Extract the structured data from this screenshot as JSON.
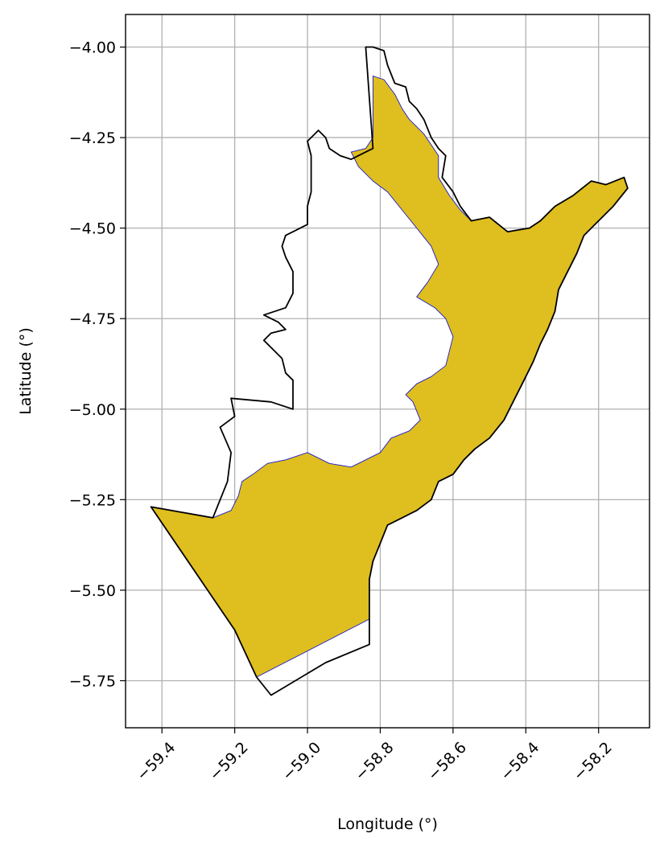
{
  "chart_data": {
    "type": "map",
    "xlabel": "Longitude (°)",
    "ylabel": "Latitude (°)",
    "xlim": [
      -59.5,
      -58.06
    ],
    "ylim": [
      -5.88,
      -3.91
    ],
    "x_ticks": [
      -59.4,
      -59.2,
      -59.0,
      -58.8,
      -58.6,
      -58.4,
      -58.2
    ],
    "x_tick_labels": [
      "−59.4",
      "−59.2",
      "−59.0",
      "−58.8",
      "−58.6",
      "−58.4",
      "−58.2"
    ],
    "y_ticks": [
      -4.0,
      -4.25,
      -4.5,
      -4.75,
      -5.0,
      -5.25,
      -5.5,
      -5.75
    ],
    "y_tick_labels": [
      "−4.00",
      "−4.25",
      "−4.50",
      "−4.75",
      "−5.00",
      "−5.25",
      "−5.50",
      "−5.75"
    ],
    "grid": true,
    "colors": {
      "filled_region": "#dfbe1f",
      "filled_edge": "#1a1acc",
      "boundary": "#000000",
      "grid": "#b0b0b0"
    },
    "layers": [
      {
        "name": "boundary",
        "style": "outline",
        "coords": [
          [
            -58.82,
            -4.0
          ],
          [
            -58.79,
            -4.01
          ],
          [
            -58.78,
            -4.05
          ],
          [
            -58.76,
            -4.1
          ],
          [
            -58.73,
            -4.11
          ],
          [
            -58.72,
            -4.15
          ],
          [
            -58.7,
            -4.17
          ],
          [
            -58.68,
            -4.2
          ],
          [
            -58.66,
            -4.25
          ],
          [
            -58.64,
            -4.28
          ],
          [
            -58.62,
            -4.3
          ],
          [
            -58.63,
            -4.36
          ],
          [
            -58.6,
            -4.4
          ],
          [
            -58.58,
            -4.44
          ],
          [
            -58.55,
            -4.48
          ],
          [
            -58.5,
            -4.47
          ],
          [
            -58.45,
            -4.51
          ],
          [
            -58.39,
            -4.5
          ],
          [
            -58.36,
            -4.48
          ],
          [
            -58.32,
            -4.44
          ],
          [
            -58.27,
            -4.41
          ],
          [
            -58.22,
            -4.37
          ],
          [
            -58.18,
            -4.38
          ],
          [
            -58.13,
            -4.36
          ],
          [
            -58.12,
            -4.39
          ],
          [
            -58.16,
            -4.44
          ],
          [
            -58.2,
            -4.48
          ],
          [
            -58.24,
            -4.52
          ],
          [
            -58.26,
            -4.57
          ],
          [
            -58.29,
            -4.63
          ],
          [
            -58.31,
            -4.67
          ],
          [
            -58.32,
            -4.73
          ],
          [
            -58.34,
            -4.78
          ],
          [
            -58.36,
            -4.82
          ],
          [
            -58.38,
            -4.87
          ],
          [
            -58.41,
            -4.93
          ],
          [
            -58.44,
            -4.99
          ],
          [
            -58.46,
            -5.03
          ],
          [
            -58.5,
            -5.08
          ],
          [
            -58.54,
            -5.11
          ],
          [
            -58.57,
            -5.14
          ],
          [
            -58.6,
            -5.18
          ],
          [
            -58.64,
            -5.2
          ],
          [
            -58.66,
            -5.25
          ],
          [
            -58.7,
            -5.28
          ],
          [
            -58.74,
            -5.3
          ],
          [
            -58.78,
            -5.32
          ],
          [
            -58.8,
            -5.37
          ],
          [
            -58.82,
            -5.42
          ],
          [
            -58.83,
            -5.47
          ],
          [
            -58.83,
            -5.56
          ],
          [
            -58.83,
            -5.65
          ],
          [
            -58.95,
            -5.7
          ],
          [
            -59.1,
            -5.79
          ],
          [
            -59.14,
            -5.74
          ],
          [
            -59.2,
            -5.61
          ],
          [
            -59.43,
            -5.27
          ],
          [
            -59.26,
            -5.3
          ],
          [
            -59.22,
            -5.2
          ],
          [
            -59.21,
            -5.12
          ],
          [
            -59.24,
            -5.05
          ],
          [
            -59.2,
            -5.02
          ],
          [
            -59.21,
            -4.97
          ],
          [
            -59.1,
            -4.98
          ],
          [
            -59.04,
            -5.0
          ],
          [
            -59.04,
            -4.92
          ],
          [
            -59.06,
            -4.9
          ],
          [
            -59.07,
            -4.86
          ],
          [
            -59.09,
            -4.84
          ],
          [
            -59.12,
            -4.81
          ],
          [
            -59.1,
            -4.79
          ],
          [
            -59.06,
            -4.78
          ],
          [
            -59.08,
            -4.76
          ],
          [
            -59.12,
            -4.74
          ],
          [
            -59.09,
            -4.73
          ],
          [
            -59.06,
            -4.72
          ],
          [
            -59.04,
            -4.68
          ],
          [
            -59.04,
            -4.62
          ],
          [
            -59.06,
            -4.58
          ],
          [
            -59.07,
            -4.55
          ],
          [
            -59.06,
            -4.52
          ],
          [
            -59.04,
            -4.51
          ],
          [
            -59.0,
            -4.49
          ],
          [
            -59.0,
            -4.44
          ],
          [
            -58.99,
            -4.4
          ],
          [
            -58.99,
            -4.3
          ],
          [
            -59.0,
            -4.26
          ],
          [
            -58.97,
            -4.23
          ],
          [
            -58.95,
            -4.25
          ],
          [
            -58.94,
            -4.28
          ],
          [
            -58.91,
            -4.3
          ],
          [
            -58.88,
            -4.31
          ],
          [
            -58.82,
            -4.28
          ],
          [
            -58.84,
            -4.0
          ]
        ]
      },
      {
        "name": "filled-region",
        "style": "fill",
        "coords": [
          [
            -58.82,
            -4.08
          ],
          [
            -58.79,
            -4.09
          ],
          [
            -58.76,
            -4.13
          ],
          [
            -58.74,
            -4.17
          ],
          [
            -58.72,
            -4.2
          ],
          [
            -58.7,
            -4.22
          ],
          [
            -58.68,
            -4.24
          ],
          [
            -58.66,
            -4.27
          ],
          [
            -58.64,
            -4.3
          ],
          [
            -58.64,
            -4.36
          ],
          [
            -58.61,
            -4.41
          ],
          [
            -58.58,
            -4.45
          ],
          [
            -58.55,
            -4.48
          ],
          [
            -58.5,
            -4.47
          ],
          [
            -58.45,
            -4.51
          ],
          [
            -58.39,
            -4.5
          ],
          [
            -58.36,
            -4.48
          ],
          [
            -58.32,
            -4.44
          ],
          [
            -58.27,
            -4.41
          ],
          [
            -58.22,
            -4.37
          ],
          [
            -58.18,
            -4.38
          ],
          [
            -58.13,
            -4.36
          ],
          [
            -58.12,
            -4.39
          ],
          [
            -58.16,
            -4.44
          ],
          [
            -58.2,
            -4.48
          ],
          [
            -58.24,
            -4.52
          ],
          [
            -58.26,
            -4.57
          ],
          [
            -58.29,
            -4.63
          ],
          [
            -58.31,
            -4.67
          ],
          [
            -58.32,
            -4.73
          ],
          [
            -58.34,
            -4.78
          ],
          [
            -58.36,
            -4.82
          ],
          [
            -58.38,
            -4.87
          ],
          [
            -58.41,
            -4.93
          ],
          [
            -58.44,
            -4.99
          ],
          [
            -58.46,
            -5.03
          ],
          [
            -58.5,
            -5.08
          ],
          [
            -58.54,
            -5.11
          ],
          [
            -58.57,
            -5.14
          ],
          [
            -58.6,
            -5.18
          ],
          [
            -58.64,
            -5.2
          ],
          [
            -58.66,
            -5.25
          ],
          [
            -58.7,
            -5.28
          ],
          [
            -58.74,
            -5.3
          ],
          [
            -58.78,
            -5.32
          ],
          [
            -58.8,
            -5.37
          ],
          [
            -58.82,
            -5.42
          ],
          [
            -58.83,
            -5.47
          ],
          [
            -58.83,
            -5.53
          ],
          [
            -58.83,
            -5.58
          ],
          [
            -59.14,
            -5.74
          ],
          [
            -59.2,
            -5.61
          ],
          [
            -59.43,
            -5.27
          ],
          [
            -59.26,
            -5.3
          ],
          [
            -59.21,
            -5.28
          ],
          [
            -59.19,
            -5.24
          ],
          [
            -59.18,
            -5.2
          ],
          [
            -59.15,
            -5.18
          ],
          [
            -59.11,
            -5.15
          ],
          [
            -59.06,
            -5.14
          ],
          [
            -59.0,
            -5.12
          ],
          [
            -58.94,
            -5.15
          ],
          [
            -58.88,
            -5.16
          ],
          [
            -58.84,
            -5.14
          ],
          [
            -58.8,
            -5.12
          ],
          [
            -58.77,
            -5.08
          ],
          [
            -58.72,
            -5.06
          ],
          [
            -58.69,
            -5.03
          ],
          [
            -58.71,
            -4.98
          ],
          [
            -58.73,
            -4.96
          ],
          [
            -58.7,
            -4.93
          ],
          [
            -58.66,
            -4.91
          ],
          [
            -58.62,
            -4.88
          ],
          [
            -58.6,
            -4.8
          ],
          [
            -58.62,
            -4.75
          ],
          [
            -58.65,
            -4.72
          ],
          [
            -58.7,
            -4.69
          ],
          [
            -58.67,
            -4.65
          ],
          [
            -58.64,
            -4.6
          ],
          [
            -58.66,
            -4.55
          ],
          [
            -58.7,
            -4.5
          ],
          [
            -58.74,
            -4.45
          ],
          [
            -58.78,
            -4.4
          ],
          [
            -58.82,
            -4.37
          ],
          [
            -58.86,
            -4.33
          ],
          [
            -58.88,
            -4.29
          ],
          [
            -58.84,
            -4.28
          ],
          [
            -58.82,
            -4.25
          ]
        ]
      }
    ]
  }
}
